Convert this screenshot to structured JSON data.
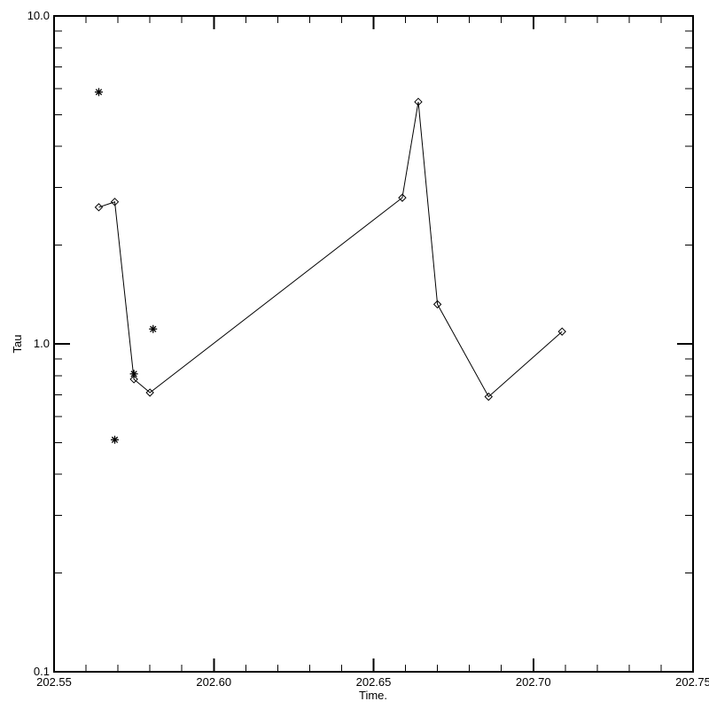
{
  "page": {
    "background": "#ffffff",
    "foreground": "#000000"
  },
  "chart_data": {
    "type": "line",
    "title": "",
    "xlabel": "Time.",
    "ylabel": "Tau",
    "grid": false,
    "legend": "none",
    "axis_color": "#000000",
    "x_axis": {
      "min": 202.55,
      "max": 202.75,
      "scale": "linear",
      "major_ticks": [
        202.55,
        202.6,
        202.65,
        202.7,
        202.75
      ],
      "major_tick_labels": [
        "202.55",
        "202.60",
        "202.65",
        "202.70",
        "202.75"
      ],
      "minor_tick_interval": 0.01
    },
    "y_axis": {
      "min": 0.1,
      "max": 10.0,
      "scale": "log",
      "major_ticks": [
        0.1,
        1.0,
        10.0
      ],
      "major_tick_labels": [
        "0.1",
        "1.0",
        "10.0"
      ],
      "minor_tick_multipliers": [
        2,
        3,
        4,
        5,
        6,
        7,
        8,
        9
      ]
    },
    "series": [
      {
        "name": "tau-connected-diamonds",
        "marker": "diamond",
        "line": true,
        "color": "#000000",
        "points": [
          [
            202.564,
            2.61
          ],
          [
            202.569,
            2.71
          ],
          [
            202.575,
            0.78
          ],
          [
            202.58,
            0.71
          ],
          [
            202.659,
            2.79
          ],
          [
            202.664,
            5.47
          ],
          [
            202.67,
            1.32
          ],
          [
            202.686,
            0.69
          ],
          [
            202.709,
            1.09
          ]
        ]
      },
      {
        "name": "tau-isolated-asterisks",
        "marker": "asterisk",
        "line": false,
        "color": "#000000",
        "points": [
          [
            202.564,
            5.86
          ],
          [
            202.581,
            1.11
          ],
          [
            202.575,
            0.81
          ],
          [
            202.569,
            0.51
          ]
        ]
      }
    ]
  }
}
